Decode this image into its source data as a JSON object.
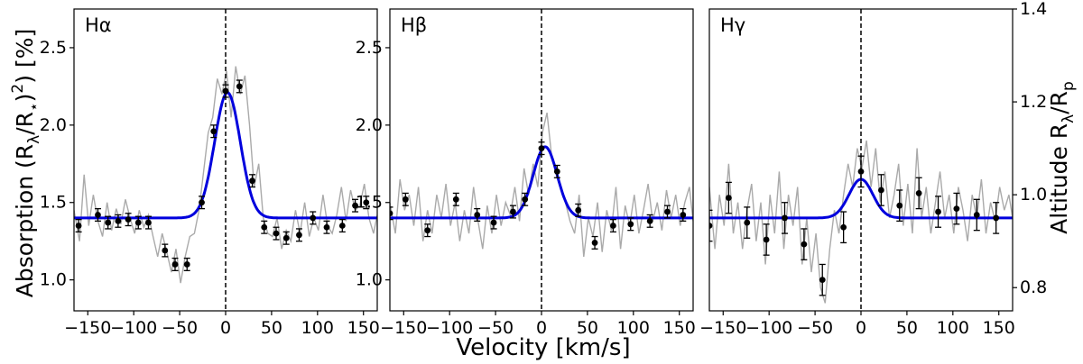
{
  "figure": {
    "xlabel": "Velocity [km/s]",
    "ylabel_left_main": "Absorption (R",
    "ylabel_left_sub1": "λ",
    "ylabel_left_mid": "/R",
    "ylabel_left_sub2": "⋆",
    "ylabel_left_sup": "2",
    "ylabel_left_tail": ") [%]",
    "ylabel_right_main": "Altitude R",
    "ylabel_right_sub1": "λ",
    "ylabel_right_mid": "/R",
    "ylabel_right_sub2": "p",
    "colors": {
      "fit": "#0000dd",
      "raw": "#aaaaaa",
      "points": "#000000",
      "zero_line": "#000000"
    }
  },
  "chart_data": [
    {
      "type": "line",
      "panel_label": "Hα",
      "xlim": [
        -165,
        165
      ],
      "ylim": [
        0.8,
        2.75
      ],
      "xticks": [
        -150,
        -100,
        -50,
        0,
        50,
        100,
        150
      ],
      "yticks": [
        1.0,
        1.5,
        2.0,
        2.5
      ],
      "fit": {
        "baseline": 1.4,
        "amplitude": 0.81,
        "center": 2,
        "sigma": 14
      },
      "binned": {
        "x": [
          -160,
          -139,
          -128,
          -117,
          -106,
          -95,
          -84,
          -66,
          -55,
          -42,
          -26,
          -13,
          0,
          15,
          29,
          42,
          55,
          66,
          80,
          95,
          110,
          127,
          141,
          153
        ],
        "y": [
          1.35,
          1.42,
          1.37,
          1.38,
          1.39,
          1.37,
          1.37,
          1.19,
          1.1,
          1.1,
          1.5,
          1.96,
          2.22,
          2.25,
          1.64,
          1.34,
          1.3,
          1.27,
          1.29,
          1.4,
          1.34,
          1.35,
          1.48,
          1.5
        ],
        "err": [
          0.04,
          0.04,
          0.04,
          0.04,
          0.04,
          0.04,
          0.04,
          0.04,
          0.04,
          0.04,
          0.04,
          0.04,
          0.04,
          0.04,
          0.04,
          0.04,
          0.04,
          0.04,
          0.04,
          0.04,
          0.04,
          0.04,
          0.04,
          0.04
        ]
      },
      "raw": {
        "x": [
          -165,
          -159,
          -154,
          -149,
          -144,
          -139,
          -134,
          -129,
          -124,
          -119,
          -114,
          -109,
          -104,
          -99,
          -94,
          -89,
          -84,
          -79,
          -74,
          -69,
          -64,
          -59,
          -54,
          -49,
          -44,
          -39,
          -34,
          -29,
          -24,
          -19,
          -14,
          -9,
          -4,
          1,
          6,
          11,
          16,
          21,
          26,
          31,
          36,
          41,
          46,
          51,
          56,
          61,
          66,
          71,
          76,
          81,
          86,
          91,
          96,
          101,
          106,
          111,
          116,
          121,
          126,
          131,
          136,
          141,
          146,
          151,
          156,
          161,
          165
        ],
        "y": [
          1.45,
          1.25,
          1.68,
          1.35,
          1.55,
          1.38,
          1.28,
          1.5,
          1.32,
          1.46,
          1.36,
          1.52,
          1.4,
          1.3,
          1.45,
          1.34,
          1.42,
          1.28,
          1.15,
          1.3,
          1.18,
          1.05,
          1.2,
          0.98,
          1.15,
          1.28,
          1.3,
          1.45,
          1.7,
          1.95,
          2.05,
          2.3,
          2.2,
          2.35,
          2.05,
          2.38,
          2.2,
          2.32,
          2.0,
          1.6,
          1.75,
          1.4,
          1.3,
          1.28,
          1.4,
          1.2,
          1.32,
          1.25,
          1.45,
          1.3,
          1.5,
          1.28,
          1.4,
          1.32,
          1.55,
          1.35,
          1.3,
          1.42,
          1.6,
          1.38,
          1.58,
          1.45,
          1.48,
          1.62,
          1.4,
          1.3,
          1.42
        ]
      }
    },
    {
      "type": "line",
      "panel_label": "Hβ",
      "xlim": [
        -165,
        165
      ],
      "ylim": [
        0.8,
        2.75
      ],
      "xticks": [
        -150,
        -100,
        -50,
        0,
        50,
        100,
        150
      ],
      "yticks": [
        1.0,
        1.5,
        2.0,
        2.5
      ],
      "fit": {
        "baseline": 1.4,
        "amplitude": 0.46,
        "center": 4,
        "sigma": 13
      },
      "binned": {
        "x": [
          -165,
          -148,
          -124,
          -93,
          -70,
          -52,
          -31,
          -18,
          0,
          17,
          40,
          58,
          78,
          97,
          118,
          137,
          154
        ],
        "y": [
          1.43,
          1.52,
          1.32,
          1.52,
          1.42,
          1.37,
          1.44,
          1.52,
          1.85,
          1.7,
          1.45,
          1.24,
          1.35,
          1.36,
          1.38,
          1.44,
          1.42
        ],
        "err": [
          0.04,
          0.04,
          0.04,
          0.04,
          0.04,
          0.04,
          0.04,
          0.04,
          0.04,
          0.04,
          0.04,
          0.04,
          0.04,
          0.04,
          0.04,
          0.04,
          0.04
        ]
      },
      "raw": {
        "x": [
          -165,
          -159,
          -154,
          -149,
          -144,
          -139,
          -134,
          -129,
          -124,
          -119,
          -114,
          -109,
          -104,
          -99,
          -94,
          -89,
          -84,
          -79,
          -74,
          -69,
          -64,
          -59,
          -54,
          -49,
          -44,
          -39,
          -34,
          -29,
          -24,
          -19,
          -14,
          -9,
          -4,
          1,
          6,
          11,
          16,
          21,
          26,
          31,
          36,
          41,
          46,
          51,
          56,
          61,
          66,
          71,
          76,
          81,
          86,
          91,
          96,
          101,
          106,
          111,
          116,
          121,
          126,
          131,
          136,
          141,
          146,
          151,
          156,
          161,
          165
        ],
        "y": [
          1.5,
          1.3,
          1.65,
          1.45,
          1.55,
          1.35,
          1.6,
          1.25,
          1.45,
          1.3,
          1.55,
          1.4,
          1.62,
          1.35,
          1.5,
          1.25,
          1.45,
          1.3,
          1.6,
          1.38,
          1.2,
          1.48,
          1.3,
          1.55,
          1.35,
          1.5,
          1.42,
          1.6,
          1.38,
          1.72,
          1.55,
          1.75,
          1.6,
          1.95,
          2.08,
          1.8,
          1.72,
          1.6,
          1.5,
          1.38,
          1.3,
          1.55,
          1.15,
          1.4,
          1.28,
          1.5,
          1.18,
          1.45,
          1.32,
          1.6,
          1.2,
          1.48,
          1.35,
          1.55,
          1.3,
          1.45,
          1.62,
          1.38,
          1.5,
          1.32,
          1.58,
          1.4,
          1.55,
          1.35,
          1.5,
          1.6,
          1.38
        ]
      }
    },
    {
      "type": "line",
      "panel_label": "Hγ",
      "xlim": [
        -165,
        165
      ],
      "ylim": [
        0.8,
        2.75
      ],
      "xticks": [
        -150,
        -100,
        -50,
        0,
        50,
        100,
        150
      ],
      "yticks": [],
      "right_axis": {
        "ylim": [
          0.75,
          1.4
        ],
        "yticks": [
          0.8,
          1.0,
          1.2,
          1.4
        ]
      },
      "fit": {
        "baseline": 1.4,
        "amplitude": 0.25,
        "center": 0,
        "sigma": 13
      },
      "binned": {
        "x": [
          -165,
          -144,
          -124,
          -103,
          -83,
          -62,
          -42,
          -19,
          0,
          22,
          42,
          63,
          84,
          104,
          126,
          147
        ],
        "y": [
          1.35,
          1.53,
          1.37,
          1.26,
          1.4,
          1.23,
          1.0,
          1.34,
          1.7,
          1.58,
          1.48,
          1.56,
          1.44,
          1.46,
          1.42,
          1.4
        ],
        "err": [
          0.1,
          0.1,
          0.1,
          0.1,
          0.1,
          0.1,
          0.1,
          0.1,
          0.1,
          0.1,
          0.1,
          0.1,
          0.1,
          0.1,
          0.1,
          0.1
        ]
      },
      "raw": {
        "x": [
          -165,
          -159,
          -154,
          -149,
          -144,
          -139,
          -134,
          -129,
          -124,
          -119,
          -114,
          -109,
          -104,
          -99,
          -94,
          -89,
          -84,
          -79,
          -74,
          -69,
          -64,
          -59,
          -54,
          -49,
          -44,
          -39,
          -34,
          -29,
          -24,
          -19,
          -14,
          -9,
          -4,
          1,
          6,
          11,
          16,
          21,
          26,
          31,
          36,
          41,
          46,
          51,
          56,
          61,
          66,
          71,
          76,
          81,
          86,
          91,
          96,
          101,
          106,
          111,
          116,
          121,
          126,
          131,
          136,
          141,
          146,
          151,
          156,
          161,
          165
        ],
        "y": [
          1.6,
          1.2,
          1.55,
          1.35,
          1.75,
          1.3,
          1.5,
          1.2,
          1.45,
          1.62,
          1.25,
          1.5,
          1.1,
          1.55,
          1.3,
          1.7,
          1.2,
          1.55,
          1.35,
          1.6,
          1.1,
          1.4,
          1.05,
          1.3,
          0.95,
          0.85,
          1.2,
          1.45,
          1.3,
          1.55,
          1.75,
          1.6,
          1.85,
          1.72,
          1.9,
          1.6,
          1.85,
          1.5,
          1.7,
          1.4,
          1.55,
          1.75,
          1.35,
          1.62,
          1.3,
          1.85,
          1.4,
          1.6,
          1.3,
          1.5,
          1.7,
          1.4,
          1.55,
          1.3,
          1.6,
          1.45,
          1.25,
          1.55,
          1.4,
          1.65,
          1.3,
          1.5,
          1.38,
          1.6,
          1.45,
          1.55,
          1.4
        ]
      }
    }
  ]
}
